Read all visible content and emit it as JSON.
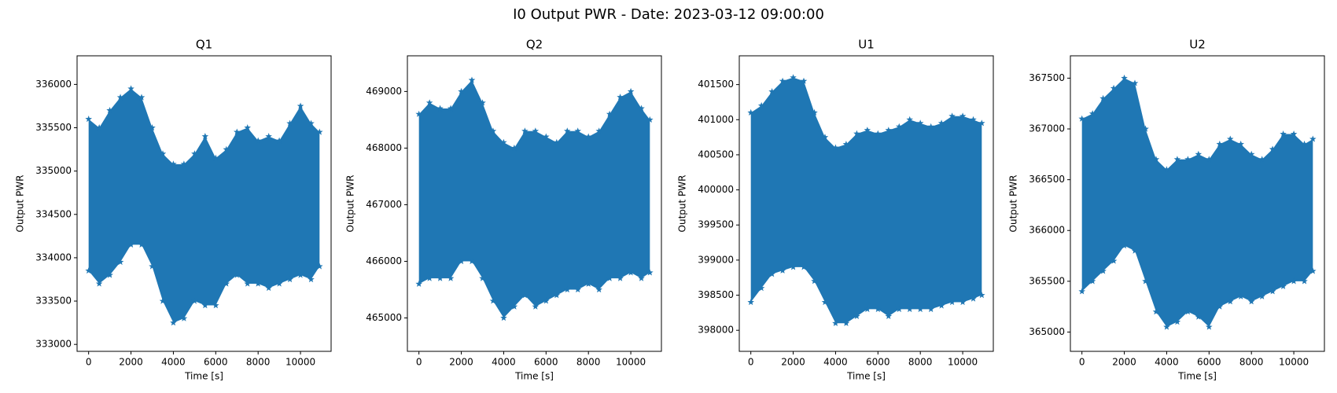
{
  "title": "I0 Output PWR - Date: 2023-03-12 09:00:00",
  "chart_data": [
    {
      "type": "scatter",
      "title": "Q1",
      "xlabel": "Time [s]",
      "ylabel": "Output PWR",
      "color": "#1f77b4",
      "marker": "star",
      "x": [
        0,
        500,
        1000,
        1500,
        2000,
        2500,
        3000,
        3500,
        4000,
        4500,
        5000,
        5500,
        6000,
        6500,
        7000,
        7500,
        8000,
        8500,
        9000,
        9500,
        10000,
        10500,
        10900
      ],
      "y_max": [
        335600,
        335500,
        335700,
        335850,
        335950,
        335850,
        335500,
        335200,
        335080,
        335080,
        335200,
        335400,
        335150,
        335250,
        335450,
        335500,
        335350,
        335400,
        335350,
        335550,
        335750,
        335550,
        335450
      ],
      "y_min": [
        333850,
        333700,
        333800,
        333950,
        334150,
        334150,
        333900,
        333500,
        333250,
        333300,
        333500,
        333450,
        333450,
        333700,
        333800,
        333700,
        333700,
        333650,
        333700,
        333750,
        333800,
        333750,
        333900
      ],
      "xlim": [
        -545,
        11445
      ],
      "xticks": [
        0,
        2000,
        4000,
        6000,
        8000,
        10000
      ],
      "ylim": [
        332920,
        336330
      ],
      "yticks": [
        333000,
        333500,
        334000,
        334500,
        335000,
        335500,
        336000
      ]
    },
    {
      "type": "scatter",
      "title": "Q2",
      "xlabel": "Time [s]",
      "ylabel": "Output PWR",
      "color": "#1f77b4",
      "marker": "star",
      "x": [
        0,
        500,
        1000,
        1500,
        2000,
        2500,
        3000,
        3500,
        4000,
        4500,
        5000,
        5500,
        6000,
        6500,
        7000,
        7500,
        8000,
        8500,
        9000,
        9500,
        10000,
        10500,
        10900
      ],
      "y_max": [
        468600,
        468800,
        468700,
        468700,
        469000,
        469200,
        468800,
        468300,
        468100,
        468000,
        468300,
        468300,
        468200,
        468100,
        468300,
        468300,
        468200,
        468300,
        468600,
        468900,
        469000,
        468700,
        468500
      ],
      "y_min": [
        465600,
        465700,
        465700,
        465700,
        466000,
        466000,
        465700,
        465300,
        465000,
        465200,
        465400,
        465200,
        465300,
        465400,
        465500,
        465500,
        465600,
        465500,
        465700,
        465700,
        465800,
        465700,
        465800
      ],
      "xlim": [
        -545,
        11445
      ],
      "xticks": [
        0,
        2000,
        4000,
        6000,
        8000,
        10000
      ],
      "ylim": [
        464410,
        469630
      ],
      "yticks": [
        465000,
        466000,
        467000,
        468000,
        469000
      ]
    },
    {
      "type": "scatter",
      "title": "U1",
      "xlabel": "Time [s]",
      "ylabel": "Output PWR",
      "color": "#1f77b4",
      "marker": "star",
      "x": [
        0,
        500,
        1000,
        1500,
        2000,
        2500,
        3000,
        3500,
        4000,
        4500,
        5000,
        5500,
        6000,
        6500,
        7000,
        7500,
        8000,
        8500,
        9000,
        9500,
        10000,
        10500,
        10900
      ],
      "y_max": [
        401100,
        401200,
        401400,
        401550,
        401600,
        401550,
        401100,
        400750,
        400600,
        400650,
        400800,
        400850,
        400800,
        400850,
        400900,
        401000,
        400950,
        400900,
        400950,
        401050,
        401050,
        401000,
        400950
      ],
      "y_min": [
        398400,
        398600,
        398800,
        398850,
        398900,
        398900,
        398700,
        398400,
        398100,
        398100,
        398200,
        398300,
        398300,
        398200,
        398300,
        398300,
        398300,
        398300,
        398350,
        398400,
        398400,
        398450,
        398500
      ],
      "xlim": [
        -545,
        11445
      ],
      "xticks": [
        0,
        2000,
        4000,
        6000,
        8000,
        10000
      ],
      "ylim": [
        397700,
        401910
      ],
      "yticks": [
        398000,
        398500,
        399000,
        399500,
        400000,
        400500,
        401000,
        401500
      ]
    },
    {
      "type": "scatter",
      "title": "U2",
      "xlabel": "Time [s]",
      "ylabel": "Output PWR",
      "color": "#1f77b4",
      "marker": "star",
      "x": [
        0,
        500,
        1000,
        1500,
        2000,
        2500,
        3000,
        3500,
        4000,
        4500,
        5000,
        5500,
        6000,
        6500,
        7000,
        7500,
        8000,
        8500,
        9000,
        9500,
        10000,
        10500,
        10900
      ],
      "y_max": [
        367100,
        367150,
        367300,
        367400,
        367500,
        367450,
        367000,
        366700,
        366600,
        366700,
        366700,
        366750,
        366700,
        366850,
        366900,
        366850,
        366750,
        366700,
        366800,
        366950,
        366950,
        366850,
        366900
      ],
      "y_min": [
        365400,
        365500,
        365600,
        365700,
        365850,
        365800,
        365500,
        365200,
        365050,
        365100,
        365200,
        365150,
        365050,
        365250,
        365300,
        365350,
        365300,
        365350,
        365400,
        365450,
        365500,
        365500,
        365600
      ],
      "xlim": [
        -545,
        11445
      ],
      "xticks": [
        0,
        2000,
        4000,
        6000,
        8000,
        10000
      ],
      "ylim": [
        364810,
        367720
      ],
      "yticks": [
        365000,
        365500,
        366000,
        366500,
        367000,
        367500
      ]
    }
  ]
}
